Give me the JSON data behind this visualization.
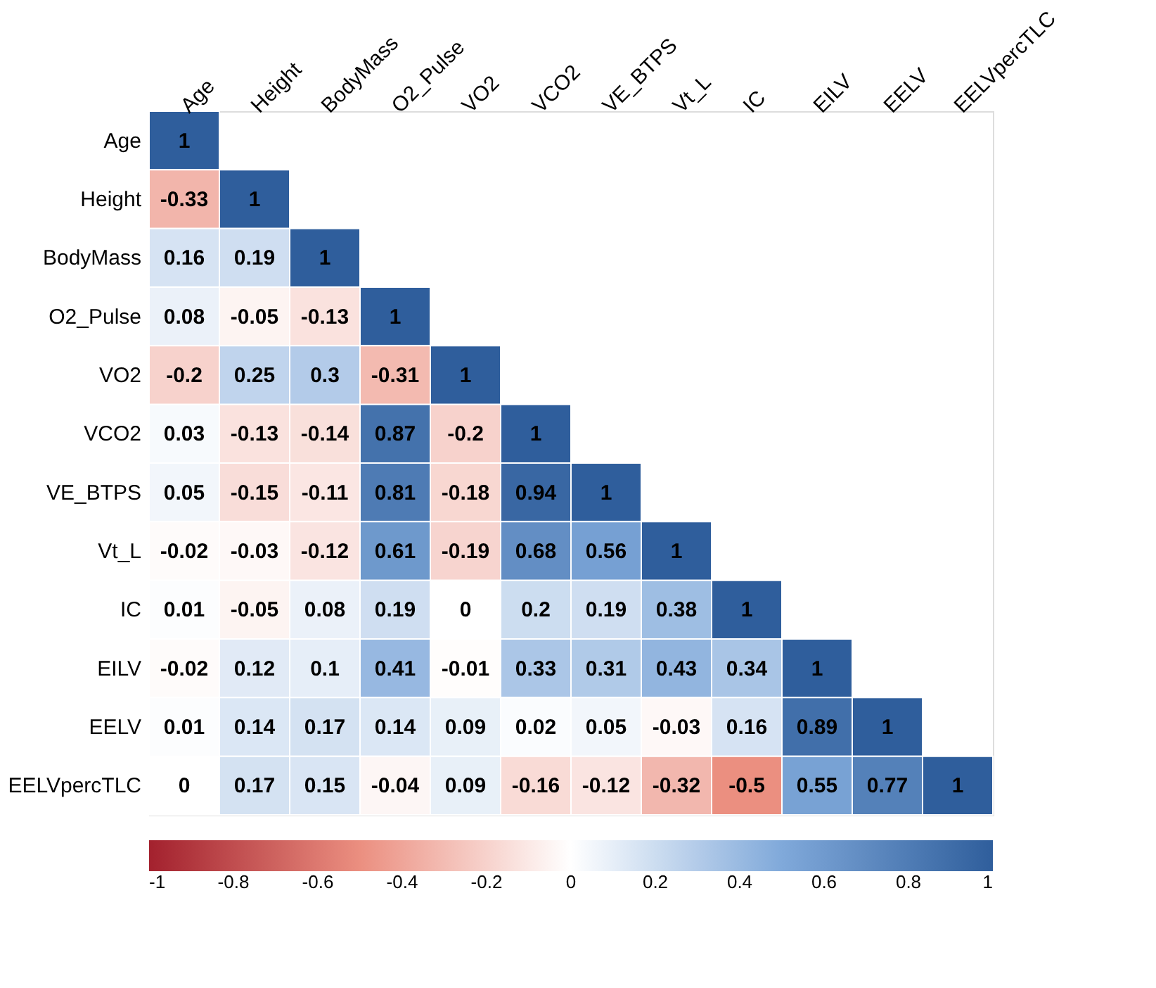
{
  "chart_data": {
    "type": "heatmap",
    "categories": [
      "Age",
      "Height",
      "BodyMass",
      "O2_Pulse",
      "VO2",
      "VCO2",
      "VE_BTPS",
      "Vt_L",
      "IC",
      "EILV",
      "EELV",
      "EELVpercTLC"
    ],
    "y_categories": [
      "Age",
      "Height",
      "BodyMass",
      "O2_Pulse",
      "VO2",
      "VCO2",
      "VE_BTPS",
      "Vt_L",
      "IC",
      "EILV",
      "EELV",
      "EELVpercTLC"
    ],
    "cells": [
      [
        1,
        null,
        null,
        null,
        null,
        null,
        null,
        null,
        null,
        null,
        null,
        null
      ],
      [
        -0.33,
        1,
        null,
        null,
        null,
        null,
        null,
        null,
        null,
        null,
        null,
        null
      ],
      [
        0.16,
        0.19,
        1,
        null,
        null,
        null,
        null,
        null,
        null,
        null,
        null,
        null
      ],
      [
        0.08,
        -0.05,
        -0.13,
        1,
        null,
        null,
        null,
        null,
        null,
        null,
        null,
        null
      ],
      [
        -0.2,
        0.25,
        0.3,
        -0.31,
        1,
        null,
        null,
        null,
        null,
        null,
        null,
        null
      ],
      [
        0.03,
        -0.13,
        -0.14,
        0.87,
        -0.2,
        1,
        null,
        null,
        null,
        null,
        null,
        null
      ],
      [
        0.05,
        -0.15,
        -0.11,
        0.81,
        -0.18,
        0.94,
        1,
        null,
        null,
        null,
        null,
        null
      ],
      [
        -0.02,
        -0.03,
        -0.12,
        0.61,
        -0.19,
        0.68,
        0.56,
        1,
        null,
        null,
        null,
        null
      ],
      [
        0.01,
        -0.05,
        0.08,
        0.19,
        0,
        0.2,
        0.19,
        0.38,
        1,
        null,
        null,
        null
      ],
      [
        -0.02,
        0.12,
        0.1,
        0.41,
        -0.01,
        0.33,
        0.31,
        0.43,
        0.34,
        1,
        null,
        null
      ],
      [
        0.01,
        0.14,
        0.17,
        0.14,
        0.09,
        0.02,
        0.05,
        -0.03,
        0.16,
        0.89,
        1,
        null
      ],
      [
        0,
        0.17,
        0.15,
        -0.04,
        0.09,
        -0.16,
        -0.12,
        -0.32,
        -0.5,
        0.55,
        0.77,
        1
      ]
    ],
    "data_labels": true,
    "clim": [
      -1,
      1
    ],
    "cticks": [
      -1,
      -0.8,
      -0.6,
      -0.4,
      -0.2,
      0,
      0.2,
      0.4,
      0.6,
      0.8,
      1
    ]
  }
}
